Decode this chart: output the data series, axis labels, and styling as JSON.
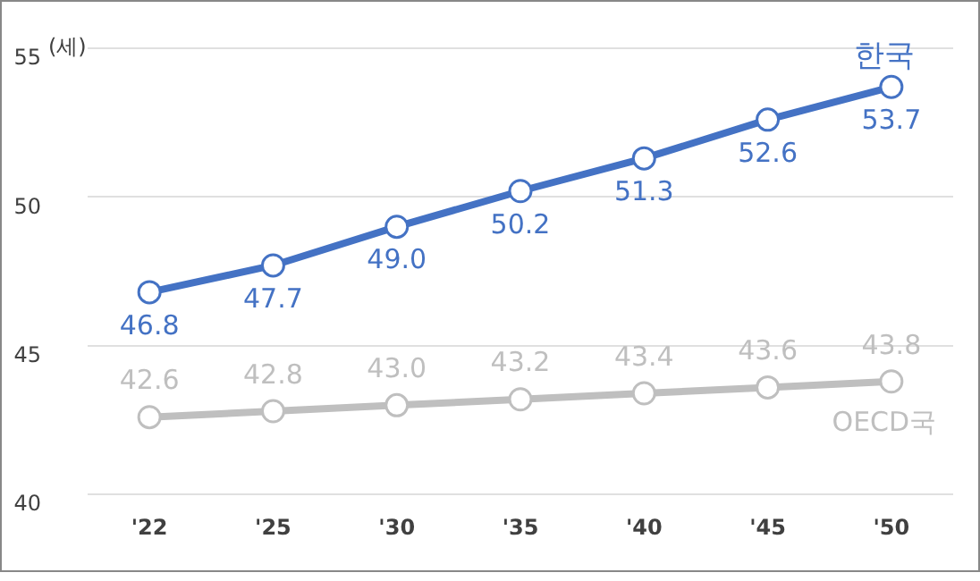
{
  "chart_data": {
    "type": "line",
    "ylabel": "(세)",
    "categories": [
      "'22",
      "'25",
      "'30",
      "'35",
      "'40",
      "'45",
      "'50"
    ],
    "series": [
      {
        "name": "한국",
        "color": "#4472c4",
        "values": [
          46.8,
          47.7,
          49.0,
          50.2,
          51.3,
          52.6,
          53.7
        ],
        "value_labels": [
          "46.8",
          "47.7",
          "49.0",
          "50.2",
          "51.3",
          "52.6",
          "53.7"
        ]
      },
      {
        "name": "OECD국",
        "color": "#bfbfbf",
        "values": [
          42.6,
          42.8,
          43.0,
          43.2,
          43.4,
          43.6,
          43.8
        ],
        "value_labels": [
          "42.6",
          "42.8",
          "43.0",
          "43.2",
          "43.4",
          "43.6",
          "43.8"
        ]
      }
    ],
    "ylim": [
      40,
      55
    ],
    "yticks": [
      40,
      45,
      50,
      55
    ],
    "grid": "y",
    "legend": false,
    "marker": "circle",
    "line_style": "solid"
  }
}
